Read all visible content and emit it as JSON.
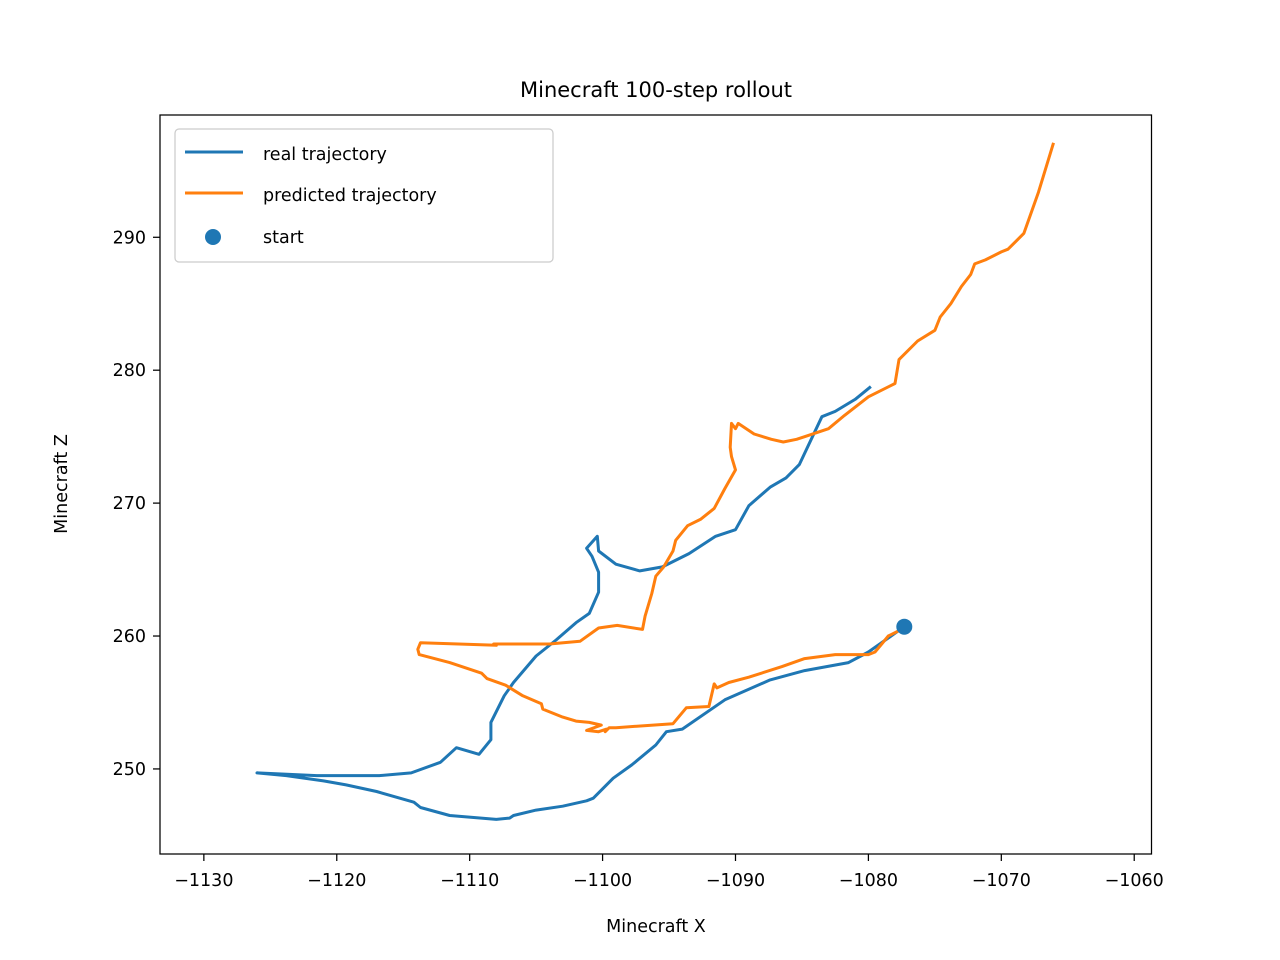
{
  "chart_data": {
    "type": "line",
    "title": "Minecraft 100-step rollout",
    "xlabel": "Minecraft X",
    "ylabel": "Minecraft Z",
    "xlim": [
      -1133.3,
      -1058.7
    ],
    "ylim": [
      243.6,
      299.2
    ],
    "xticks": [
      -1130,
      -1120,
      -1110,
      -1100,
      -1090,
      -1080,
      -1070,
      -1060
    ],
    "yticks": [
      250,
      260,
      270,
      280,
      290
    ],
    "xtick_labels": [
      "−1130",
      "−1120",
      "−1110",
      "−1100",
      "−1090",
      "−1080",
      "−1070",
      "−1060"
    ],
    "ytick_labels": [
      "250",
      "260",
      "270",
      "280",
      "290"
    ],
    "grid": false,
    "legend_position": "upper-left",
    "colors": {
      "real": "#1f77b4",
      "predicted": "#ff7f0e",
      "start": "#1f77b4"
    },
    "series": [
      {
        "name": "real trajectory",
        "type": "line",
        "color": "#1f77b4",
        "points": [
          [
            -1077.3,
            260.7
          ],
          [
            -1080.0,
            258.8
          ],
          [
            -1081.5,
            258.0
          ],
          [
            -1084.8,
            257.4
          ],
          [
            -1087.4,
            256.7
          ],
          [
            -1090.8,
            255.2
          ],
          [
            -1094.0,
            253.0
          ],
          [
            -1095.2,
            252.8
          ],
          [
            -1096.0,
            251.8
          ],
          [
            -1097.8,
            250.3
          ],
          [
            -1099.2,
            249.3
          ],
          [
            -1100.7,
            247.8
          ],
          [
            -1101.2,
            247.6
          ],
          [
            -1103.0,
            247.2
          ],
          [
            -1105.0,
            246.9
          ],
          [
            -1106.7,
            246.5
          ],
          [
            -1107.0,
            246.3
          ],
          [
            -1108.0,
            246.2
          ],
          [
            -1111.5,
            246.5
          ],
          [
            -1113.7,
            247.1
          ],
          [
            -1114.2,
            247.5
          ],
          [
            -1117.0,
            248.3
          ],
          [
            -1119.3,
            248.8
          ],
          [
            -1121.0,
            249.1
          ],
          [
            -1123.8,
            249.5
          ],
          [
            -1126.0,
            249.7
          ],
          [
            -1121.5,
            249.5
          ],
          [
            -1116.8,
            249.5
          ],
          [
            -1114.4,
            249.7
          ],
          [
            -1112.2,
            250.5
          ],
          [
            -1111.0,
            251.6
          ],
          [
            -1109.3,
            251.1
          ],
          [
            -1108.4,
            252.2
          ],
          [
            -1108.4,
            253.5
          ],
          [
            -1107.4,
            255.5
          ],
          [
            -1106.7,
            256.5
          ],
          [
            -1105.0,
            258.5
          ],
          [
            -1103.5,
            259.7
          ],
          [
            -1102.0,
            261.0
          ],
          [
            -1101.0,
            261.7
          ],
          [
            -1100.3,
            263.3
          ],
          [
            -1100.3,
            264.8
          ],
          [
            -1100.8,
            266.0
          ],
          [
            -1101.2,
            266.6
          ],
          [
            -1100.4,
            267.5
          ],
          [
            -1100.3,
            266.4
          ],
          [
            -1099.0,
            265.4
          ],
          [
            -1097.2,
            264.9
          ],
          [
            -1095.5,
            265.2
          ],
          [
            -1093.5,
            266.2
          ],
          [
            -1091.5,
            267.5
          ],
          [
            -1090.0,
            268.0
          ],
          [
            -1089.0,
            269.8
          ],
          [
            -1087.4,
            271.2
          ],
          [
            -1086.2,
            271.9
          ],
          [
            -1085.2,
            272.9
          ],
          [
            -1083.5,
            276.5
          ],
          [
            -1082.5,
            276.9
          ],
          [
            -1081.0,
            277.8
          ],
          [
            -1079.9,
            278.7
          ]
        ]
      },
      {
        "name": "predicted trajectory",
        "type": "line",
        "color": "#ff7f0e",
        "points": [
          [
            -1077.3,
            260.6
          ],
          [
            -1078.5,
            260.0
          ],
          [
            -1079.0,
            259.4
          ],
          [
            -1079.5,
            258.8
          ],
          [
            -1080.0,
            258.6
          ],
          [
            -1080.8,
            258.6
          ],
          [
            -1082.5,
            258.6
          ],
          [
            -1084.8,
            258.3
          ],
          [
            -1086.5,
            257.7
          ],
          [
            -1089.0,
            256.9
          ],
          [
            -1090.5,
            256.5
          ],
          [
            -1091.4,
            256.1
          ],
          [
            -1091.6,
            256.4
          ],
          [
            -1092.0,
            254.7
          ],
          [
            -1093.7,
            254.6
          ],
          [
            -1094.7,
            253.4
          ],
          [
            -1096.2,
            253.3
          ],
          [
            -1099.0,
            253.1
          ],
          [
            -1099.5,
            253.1
          ],
          [
            -1099.8,
            252.8
          ],
          [
            -1099.7,
            253.0
          ],
          [
            -1100.3,
            252.8
          ],
          [
            -1101.2,
            252.9
          ],
          [
            -1100.1,
            253.3
          ],
          [
            -1101.0,
            253.5
          ],
          [
            -1102.0,
            253.6
          ],
          [
            -1103.0,
            253.9
          ],
          [
            -1104.5,
            254.5
          ],
          [
            -1104.6,
            254.9
          ],
          [
            -1106.0,
            255.5
          ],
          [
            -1107.3,
            256.3
          ],
          [
            -1108.7,
            256.8
          ],
          [
            -1109.1,
            257.2
          ],
          [
            -1111.5,
            258.0
          ],
          [
            -1113.8,
            258.6
          ],
          [
            -1113.9,
            259.0
          ],
          [
            -1113.7,
            259.5
          ],
          [
            -1108.0,
            259.3
          ],
          [
            -1108.2,
            259.4
          ],
          [
            -1104.0,
            259.4
          ],
          [
            -1101.7,
            259.6
          ],
          [
            -1100.3,
            260.6
          ],
          [
            -1098.9,
            260.8
          ],
          [
            -1097.0,
            260.5
          ],
          [
            -1096.8,
            261.5
          ],
          [
            -1096.3,
            263.2
          ],
          [
            -1096.0,
            264.5
          ],
          [
            -1095.4,
            265.2
          ],
          [
            -1094.7,
            266.4
          ],
          [
            -1094.5,
            267.2
          ],
          [
            -1093.6,
            268.3
          ],
          [
            -1092.6,
            268.8
          ],
          [
            -1091.6,
            269.6
          ],
          [
            -1090.8,
            271.1
          ],
          [
            -1090.0,
            272.5
          ],
          [
            -1090.3,
            273.5
          ],
          [
            -1090.4,
            274.2
          ],
          [
            -1090.3,
            276.0
          ],
          [
            -1090.0,
            275.6
          ],
          [
            -1089.8,
            276.0
          ],
          [
            -1088.6,
            275.2
          ],
          [
            -1087.3,
            274.8
          ],
          [
            -1086.4,
            274.6
          ],
          [
            -1085.4,
            274.8
          ],
          [
            -1084.8,
            275.0
          ],
          [
            -1083.0,
            275.6
          ],
          [
            -1081.8,
            276.6
          ],
          [
            -1080.0,
            278.0
          ],
          [
            -1078.0,
            279.0
          ],
          [
            -1077.7,
            280.8
          ],
          [
            -1076.3,
            282.2
          ],
          [
            -1075.0,
            283.0
          ],
          [
            -1074.6,
            284.0
          ],
          [
            -1073.8,
            285.0
          ],
          [
            -1073.0,
            286.3
          ],
          [
            -1072.3,
            287.2
          ],
          [
            -1072.0,
            288.0
          ],
          [
            -1071.2,
            288.3
          ],
          [
            -1070.0,
            288.9
          ],
          [
            -1069.5,
            289.1
          ],
          [
            -1068.3,
            290.3
          ],
          [
            -1067.2,
            293.4
          ],
          [
            -1066.1,
            297.0
          ]
        ]
      },
      {
        "name": "start",
        "type": "scatter",
        "color": "#1f77b4",
        "points": [
          [
            -1077.3,
            260.7
          ]
        ]
      }
    ]
  }
}
